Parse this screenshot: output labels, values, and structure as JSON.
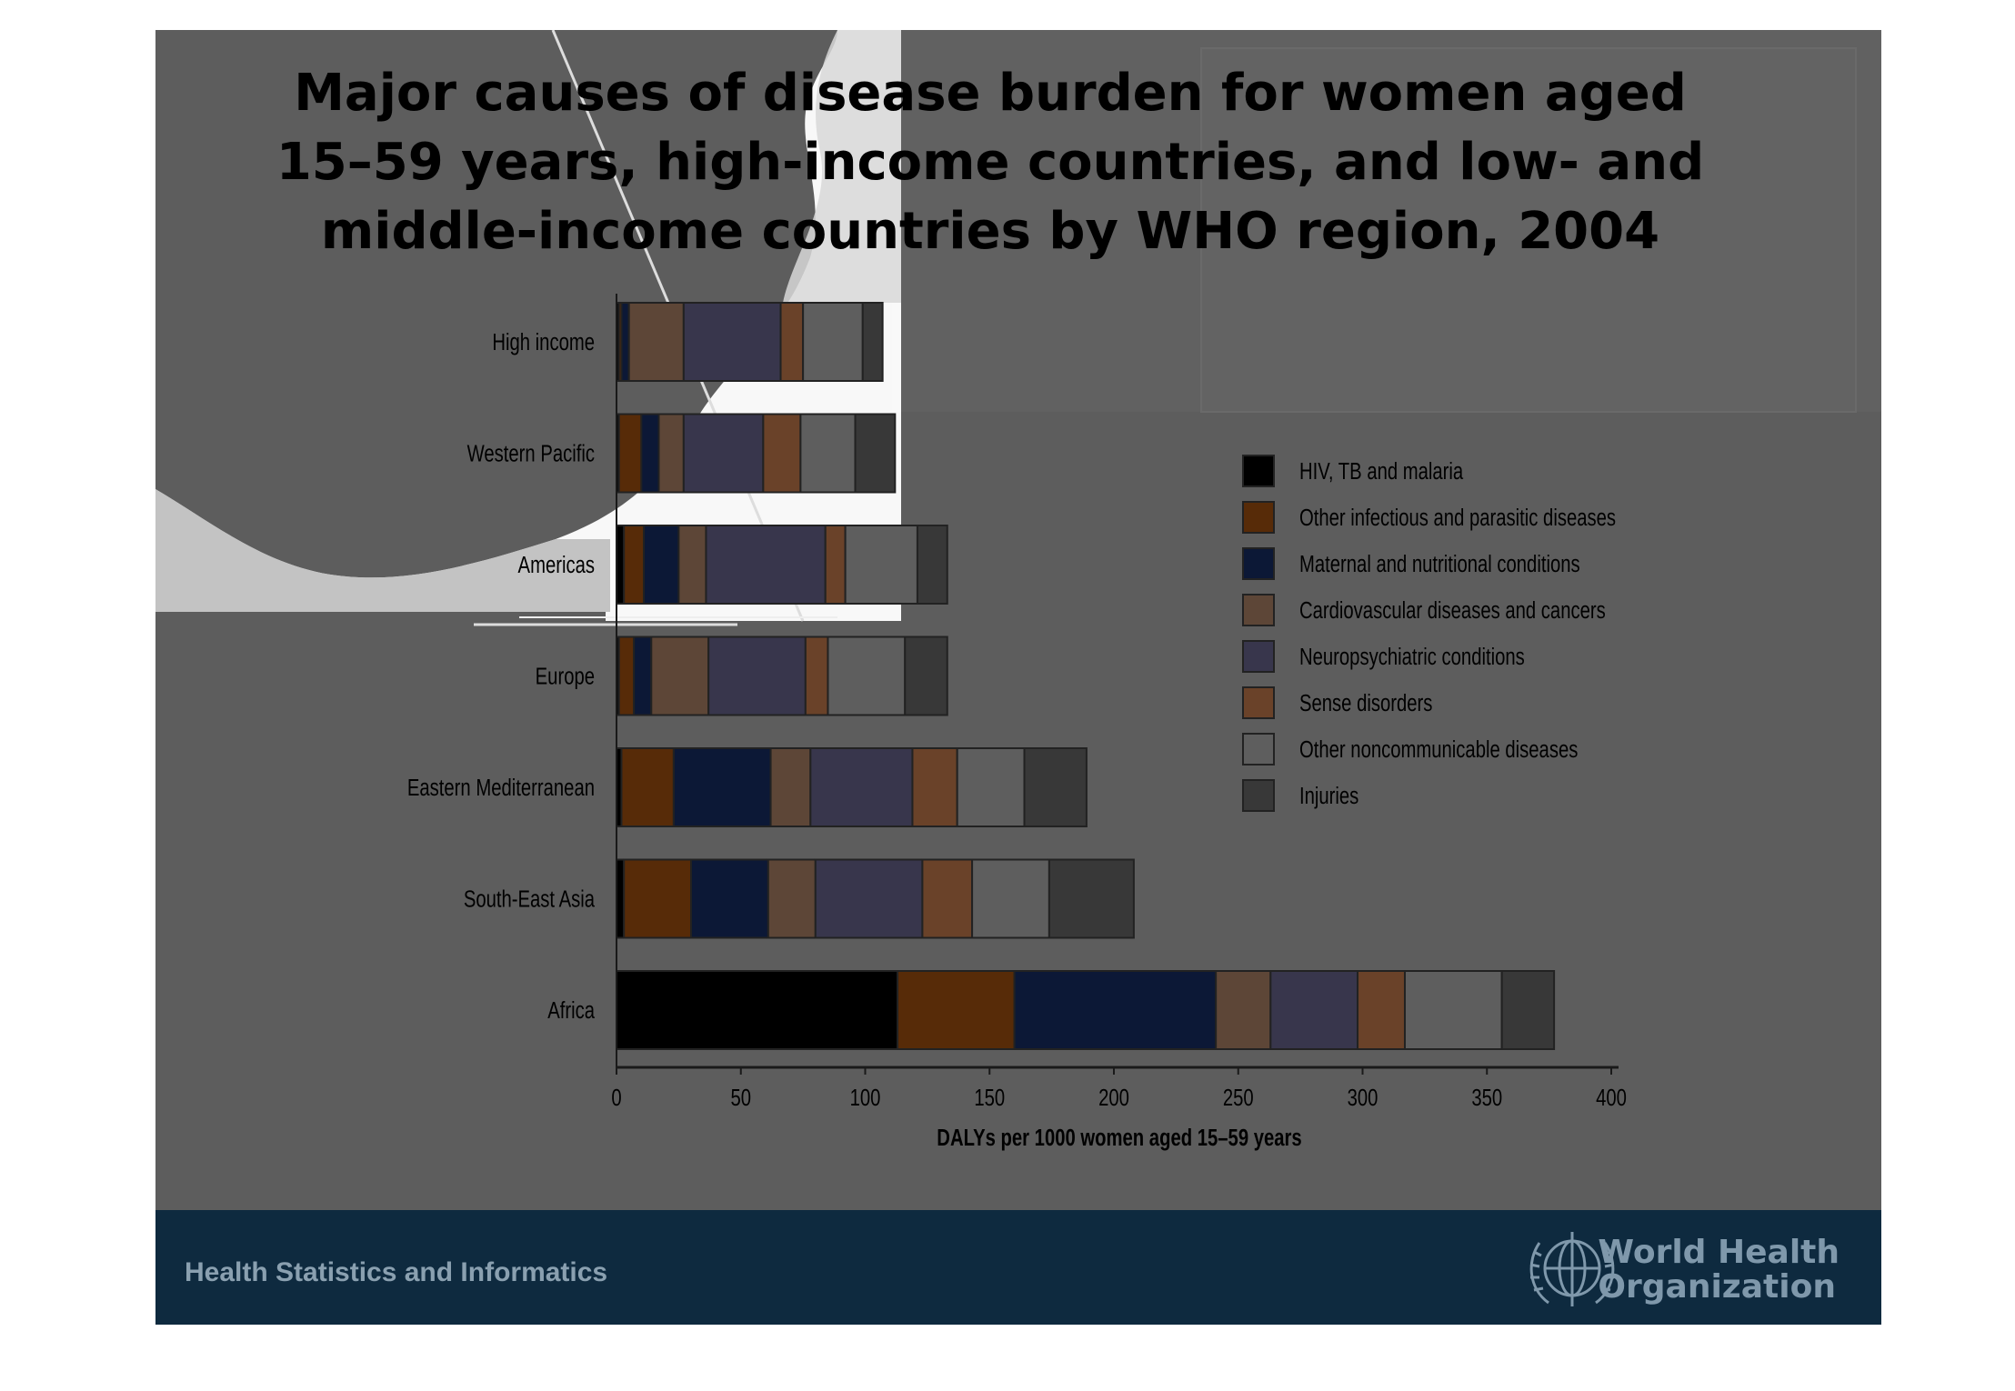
{
  "slide": {
    "title_lines": [
      "Major causes of disease burden for women aged",
      "15–59 years, high-income countries, and low- and",
      "middle-income countries by WHO region, 2004"
    ],
    "footer_text": "Health Statistics and Informatics",
    "org_name_lines": [
      "World Health",
      "Organization"
    ]
  },
  "colors": {
    "slide_background": "#5d5d5d",
    "footer_background": "#0e2a3f"
  },
  "chart_data": {
    "type": "bar",
    "orientation": "horizontal",
    "stacked": true,
    "title": "Major causes of disease burden for women aged 15–59 years, high-income countries, and low- and middle-income countries by WHO region, 2004",
    "xlabel": "DALYs per 1000 women aged 15–59 years",
    "ylabel": "",
    "xlim": [
      0,
      400
    ],
    "xticks": [
      0,
      50,
      100,
      150,
      200,
      250,
      300,
      350,
      400
    ],
    "grid": false,
    "legend_position": "right",
    "categories": [
      "High income",
      "Western Pacific",
      "Americas",
      "Europe",
      "Eastern Mediterranean",
      "South-East Asia",
      "Africa"
    ],
    "series": [
      {
        "name": "HIV, TB and malaria",
        "color": "#000000",
        "values": [
          1,
          1,
          3,
          1,
          2,
          3,
          113
        ]
      },
      {
        "name": "Other infectious and parasitic diseases",
        "color": "#572b08",
        "values": [
          1,
          9,
          8,
          6,
          21,
          27,
          47
        ]
      },
      {
        "name": "Maternal and nutritional conditions",
        "color": "#0c1836",
        "values": [
          3,
          7,
          14,
          7,
          39,
          31,
          81
        ]
      },
      {
        "name": "Cardiovascular diseases and cancers",
        "color": "#5d4637",
        "values": [
          22,
          10,
          11,
          23,
          16,
          19,
          22
        ]
      },
      {
        "name": "Neuropsychiatric conditions",
        "color": "#38364c",
        "values": [
          39,
          32,
          48,
          39,
          41,
          43,
          35
        ]
      },
      {
        "name": "Sense disorders",
        "color": "#6a4229",
        "values": [
          9,
          15,
          8,
          9,
          18,
          20,
          19
        ]
      },
      {
        "name": "Other noncommunicable diseases",
        "color": "#5e5e5e",
        "values": [
          24,
          22,
          29,
          31,
          27,
          31,
          39
        ]
      },
      {
        "name": "Injuries",
        "color": "#383838",
        "values": [
          8,
          16,
          12,
          17,
          25,
          34,
          21
        ]
      }
    ]
  }
}
